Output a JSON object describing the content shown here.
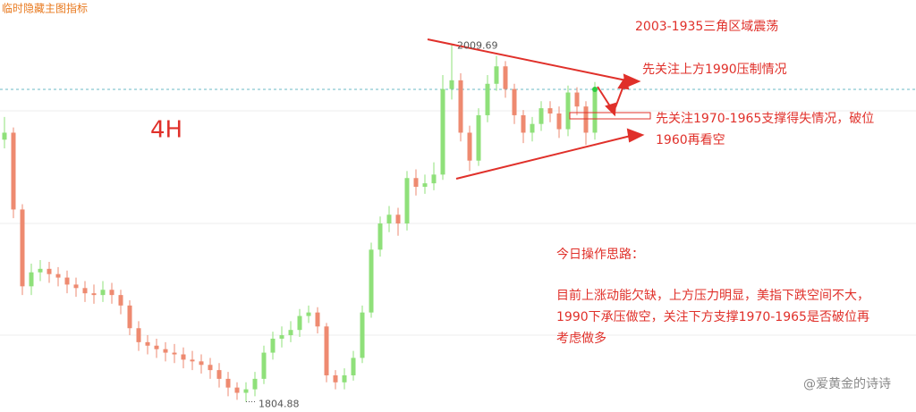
{
  "chart_data": {
    "type": "candlestick",
    "toolbar_label": "临时隐藏主图指标",
    "timeframe": "4H",
    "up_color": "#8fe07a",
    "down_color": "#ee8a70",
    "ylim": [
      1799,
      2035
    ],
    "open": [
      1955,
      1959,
      1915,
      1871,
      1879,
      1881,
      1878,
      1876,
      1872,
      1870,
      1867,
      1866,
      1869,
      1866,
      1860,
      1847,
      1839,
      1837,
      1835,
      1833,
      1832,
      1829,
      1828,
      1826,
      1823,
      1818,
      1813,
      1810,
      1812,
      1818,
      1833,
      1841,
      1843,
      1846,
      1854,
      1856,
      1848,
      1820,
      1816,
      1820,
      1830,
      1856,
      1892,
      1907,
      1912,
      1907,
      1933,
      1928,
      1930,
      1935,
      1984,
      1989,
      1959,
      1943,
      1969,
      1987,
      1997,
      1984,
      1969,
      1959,
      1964,
      1973,
      1970,
      1961,
      1982,
      1974,
      1959
    ],
    "high": [
      1968,
      1962,
      1918,
      1884,
      1886,
      1885,
      1882,
      1880,
      1876,
      1874,
      1872,
      1874,
      1873,
      1869,
      1863,
      1851,
      1843,
      1841,
      1839,
      1838,
      1836,
      1834,
      1832,
      1830,
      1827,
      1822,
      1816,
      1816,
      1822,
      1837,
      1845,
      1848,
      1851,
      1858,
      1860,
      1859,
      1850,
      1823,
      1824,
      1834,
      1860,
      1896,
      1911,
      1917,
      1916,
      1937,
      1938,
      1935,
      1942,
      1992,
      2009.69,
      1993,
      1963,
      1973,
      1992,
      2003,
      2000,
      1987,
      1972,
      1968,
      1977,
      1977,
      1974,
      1986,
      1985,
      1977,
      1988
    ],
    "low": [
      1950,
      1910,
      1866,
      1866,
      1874,
      1873,
      1871,
      1867,
      1865,
      1862,
      1861,
      1862,
      1861,
      1855,
      1843,
      1834,
      1832,
      1830,
      1828,
      1827,
      1824,
      1823,
      1821,
      1818,
      1813,
      1808,
      1806,
      1804.88,
      1808,
      1815,
      1829,
      1836,
      1839,
      1842,
      1850,
      1844,
      1816,
      1812,
      1812,
      1817,
      1827,
      1853,
      1888,
      1902,
      1900,
      1903,
      1923,
      1924,
      1926,
      1932,
      1978,
      1954,
      1937,
      1940,
      1965,
      1983,
      1979,
      1964,
      1953,
      1954,
      1960,
      1965,
      1956,
      1957,
      1969,
      1952,
      1955
    ],
    "close": [
      1959,
      1915,
      1871,
      1879,
      1881,
      1878,
      1876,
      1872,
      1870,
      1867,
      1866,
      1869,
      1866,
      1860,
      1847,
      1839,
      1837,
      1835,
      1833,
      1832,
      1829,
      1828,
      1826,
      1823,
      1818,
      1813,
      1810,
      1812,
      1818,
      1833,
      1841,
      1843,
      1846,
      1854,
      1856,
      1848,
      1820,
      1816,
      1820,
      1830,
      1856,
      1892,
      1907,
      1912,
      1907,
      1933,
      1928,
      1930,
      1935,
      1984,
      1989,
      1959,
      1943,
      1969,
      1987,
      1997,
      1984,
      1969,
      1959,
      1964,
      1973,
      1970,
      1961,
      1982,
      1974,
      1959,
      1984
    ],
    "annotations": [
      "2003-1935三角区域震荡",
      "先关注上方1990压制情况",
      "先关注1970-1965支撑得失情况，破位",
      "1960再看空"
    ],
    "plan": {
      "heading": "今日操作思路：",
      "lines": [
        "目前上涨动能欠缺，上方压力明显，美指下跌空间不大，",
        "1990下承压做空，关注下方支撑1970-1965是否破位再",
        "考虑做多"
      ]
    },
    "watermark": "@爱黄金的诗诗"
  }
}
